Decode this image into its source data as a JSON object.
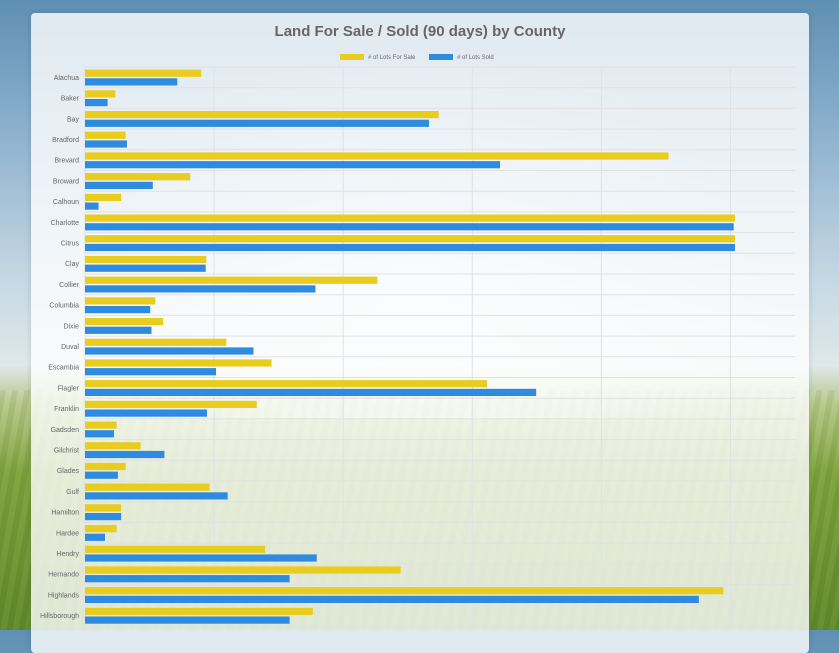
{
  "chart_data": {
    "type": "bar",
    "orientation": "horizontal",
    "title": "Land For Sale / Sold (90 days) by County",
    "categories": [
      "Alachua",
      "Baker",
      "Bay",
      "Bradford",
      "Brevard",
      "Broward",
      "Calhoun",
      "Charlotte",
      "Citrus",
      "Clay",
      "Collier",
      "Columbia",
      "Dixie",
      "Duval",
      "Escambia",
      "Flagler",
      "Franklin",
      "Gadsden",
      "Gilchrist",
      "Glades",
      "Gulf",
      "Hamilton",
      "Hardee",
      "Hendry",
      "Hernando",
      "Highlands",
      "Hillsborough"
    ],
    "series": [
      {
        "name": "# of Lots For Sale",
        "color": "#e8cc1e",
        "values": [
          180,
          47,
          548,
          63,
          904,
          163,
          56,
          1007,
          1007,
          188,
          453,
          109,
          121,
          219,
          289,
          623,
          266,
          49,
          86,
          63,
          193,
          56,
          49,
          279,
          489,
          989,
          353
        ]
      },
      {
        "name": "# of Lots Sold",
        "color": "#2f8be0",
        "values": [
          143,
          35,
          533,
          65,
          643,
          105,
          21,
          1005,
          1007,
          187,
          357,
          101,
          103,
          261,
          203,
          699,
          189,
          45,
          123,
          51,
          221,
          56,
          31,
          359,
          317,
          951,
          317
        ]
      }
    ],
    "legend": "top-center",
    "xlim": [
      0,
      1100
    ],
    "grid": true
  }
}
